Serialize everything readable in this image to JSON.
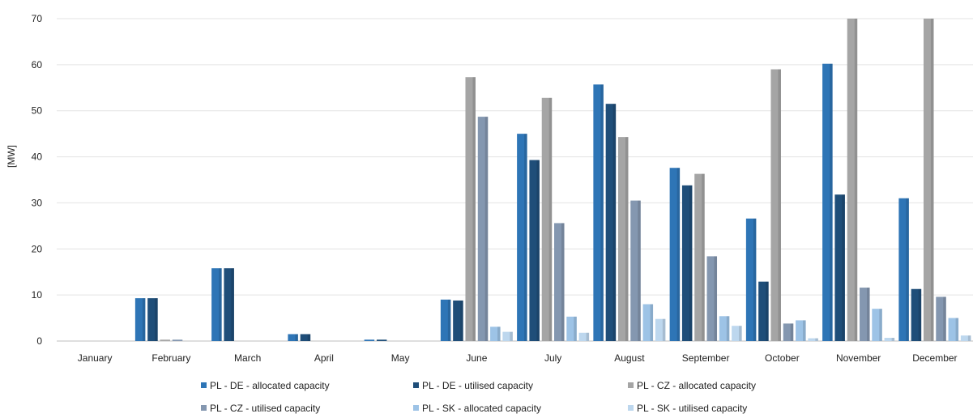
{
  "chart_data": {
    "type": "bar",
    "ylabel": "[MW]",
    "ylim": [
      0,
      70
    ],
    "yticks": [
      0,
      10,
      20,
      30,
      40,
      50,
      60,
      70
    ],
    "grid": true,
    "legend_position": "bottom",
    "categories": [
      "January",
      "February",
      "March",
      "April",
      "May",
      "June",
      "July",
      "August",
      "September",
      "October",
      "November",
      "December"
    ],
    "series": [
      {
        "name": "PL - DE - allocated capacity",
        "color": "#2e75b6",
        "values": [
          0,
          9.3,
          15.8,
          1.5,
          0.3,
          9.0,
          45.0,
          55.7,
          37.6,
          26.6,
          60.2,
          31.0
        ]
      },
      {
        "name": "PL - DE - utilised capacity",
        "color": "#1f4e79",
        "values": [
          0,
          9.3,
          15.8,
          1.5,
          0.3,
          8.8,
          39.3,
          51.5,
          33.8,
          12.9,
          31.8,
          11.3
        ]
      },
      {
        "name": "PL - CZ - allocated capacity",
        "color": "#a5a5a5",
        "values": [
          0,
          0.3,
          0,
          0,
          0,
          57.3,
          52.8,
          44.3,
          36.3,
          59.0,
          72.0,
          72.0
        ]
      },
      {
        "name": "PL - CZ - utilised capacity",
        "color": "#8497b0",
        "values": [
          0,
          0.3,
          0,
          0,
          0,
          48.7,
          25.6,
          30.5,
          18.4,
          3.8,
          11.6,
          9.6
        ]
      },
      {
        "name": "PL - SK - allocated capacity",
        "color": "#9dc3e6",
        "values": [
          0,
          0,
          0,
          0,
          0,
          3.1,
          5.3,
          8.0,
          5.4,
          4.5,
          7.0,
          5.0
        ]
      },
      {
        "name": "PL - SK - utilised capacity",
        "color": "#bdd7ee",
        "values": [
          0,
          0,
          0,
          0,
          0,
          2.0,
          1.8,
          4.8,
          3.3,
          0.6,
          0.7,
          1.2
        ]
      }
    ]
  }
}
